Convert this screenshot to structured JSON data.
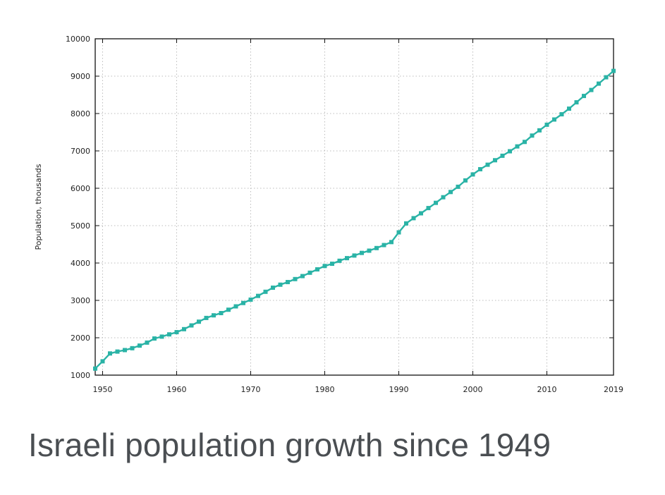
{
  "caption": "Israeli population growth since 1949",
  "colors": {
    "series": "#2ab3a6",
    "grid": "#bdbdbd",
    "axis": "#111111"
  },
  "chart_data": {
    "type": "line",
    "title": "",
    "xlabel": "",
    "ylabel": "Population, thousands",
    "xlim": [
      1949,
      2019
    ],
    "ylim": [
      1000,
      10000
    ],
    "grid": true,
    "xticks": [
      1950,
      1960,
      1970,
      1980,
      1990,
      2000,
      2010,
      2019
    ],
    "yticks": [
      1000,
      2000,
      3000,
      4000,
      5000,
      6000,
      7000,
      8000,
      9000,
      10000
    ],
    "series": [
      {
        "x": [
          1949,
          1950,
          1951,
          1952,
          1953,
          1954,
          1955,
          1956,
          1957,
          1958,
          1959,
          1960,
          1961,
          1962,
          1963,
          1964,
          1965,
          1966,
          1967,
          1968,
          1969,
          1970,
          1971,
          1972,
          1973,
          1974,
          1975,
          1976,
          1977,
          1978,
          1979,
          1980,
          1981,
          1982,
          1983,
          1984,
          1985,
          1986,
          1987,
          1988,
          1989,
          1990,
          1991,
          1992,
          1993,
          1994,
          1995,
          1996,
          1997,
          1998,
          1999,
          2000,
          2001,
          2002,
          2003,
          2004,
          2005,
          2006,
          2007,
          2008,
          2009,
          2010,
          2011,
          2012,
          2013,
          2014,
          2015,
          2016,
          2017,
          2018,
          2019
        ],
        "values": [
          1175,
          1370,
          1580,
          1630,
          1670,
          1720,
          1790,
          1870,
          1980,
          2030,
          2090,
          2150,
          2230,
          2330,
          2430,
          2530,
          2600,
          2660,
          2750,
          2840,
          2930,
          3020,
          3120,
          3230,
          3340,
          3420,
          3490,
          3570,
          3650,
          3740,
          3830,
          3920,
          3980,
          4060,
          4130,
          4200,
          4270,
          4330,
          4400,
          4480,
          4560,
          4820,
          5060,
          5200,
          5330,
          5470,
          5610,
          5760,
          5900,
          6040,
          6210,
          6370,
          6510,
          6630,
          6750,
          6870,
          6990,
          7120,
          7240,
          7410,
          7550,
          7700,
          7840,
          7980,
          8130,
          8300,
          8470,
          8630,
          8800,
          8970,
          9140
        ]
      }
    ]
  }
}
